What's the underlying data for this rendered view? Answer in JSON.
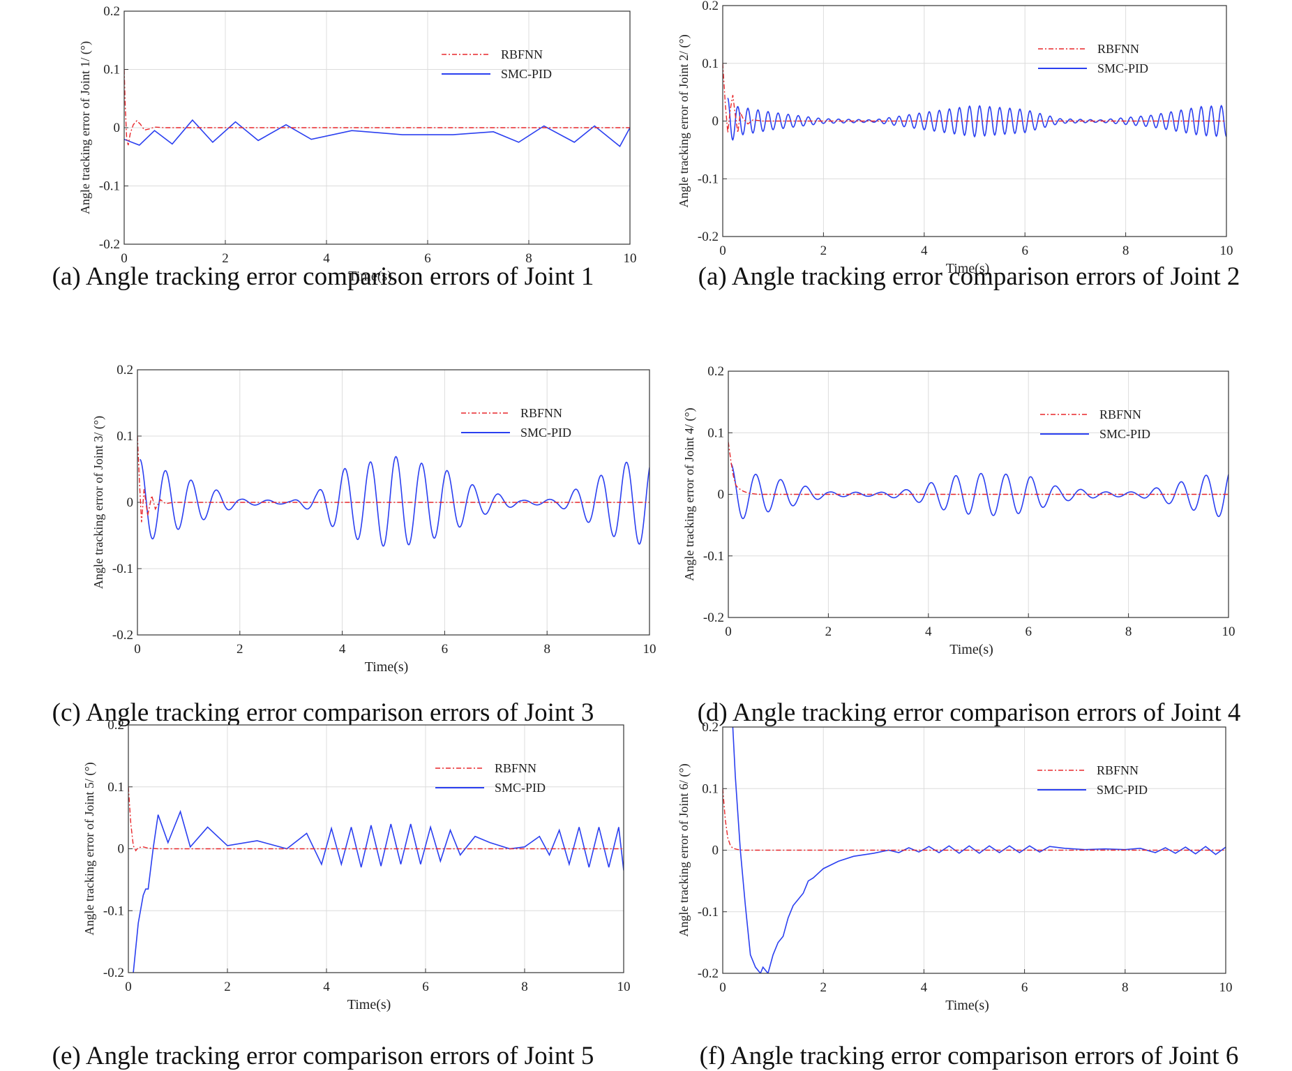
{
  "figure": {
    "captions": [
      "(a) Angle tracking error comparison errors of Joint 1",
      "(a) Angle tracking error comparison errors of Joint 2",
      "(c) Angle tracking error comparison errors of Joint 3",
      "(d) Angle tracking error comparison errors of Joint 4",
      "(e) Angle tracking error comparison errors of Joint 5",
      "(f) Angle tracking error comparison errors of Joint 6"
    ],
    "colors": {
      "rbfnn": "#e8262a",
      "smc_pid": "#2a3ff0",
      "grid": "#dcdcdc",
      "axis": "#333333"
    }
  },
  "chart_data": [
    {
      "type": "line",
      "title": "",
      "xlabel": "Time(s)",
      "ylabel": "Angle tracking error of Joint 1/ (°)",
      "xlim": [
        0,
        10
      ],
      "ylim": [
        -0.2,
        0.2
      ],
      "xticks": [
        "0",
        "2",
        "4",
        "6",
        "8",
        "10"
      ],
      "yticks": [
        "0.2",
        "0.1",
        "0",
        "-0.1",
        "-0.2"
      ],
      "legend": "top-right",
      "series": [
        {
          "name": "RBFNN",
          "style": "dash-dot",
          "x": [
            0,
            0.02,
            0.05,
            0.08,
            0.12,
            0.18,
            0.25,
            0.32,
            0.4,
            0.5,
            0.6,
            0.8,
            1.0,
            10
          ],
          "y": [
            0.1,
            0.04,
            -0.02,
            -0.03,
            -0.01,
            0.005,
            0.012,
            0.006,
            -0.004,
            -0.002,
            0.001,
            0,
            0,
            0
          ]
        },
        {
          "name": "SMC-PID",
          "style": "solid",
          "x": [
            0,
            0.3,
            0.6,
            0.95,
            1.35,
            1.75,
            2.2,
            2.65,
            3.2,
            3.7,
            4.5,
            5.5,
            6.5,
            7.3,
            7.8,
            8.3,
            8.9,
            9.3,
            9.8,
            10
          ],
          "y": [
            -0.02,
            -0.03,
            -0.005,
            -0.028,
            0.013,
            -0.025,
            0.01,
            -0.022,
            0.005,
            -0.02,
            -0.005,
            -0.012,
            -0.012,
            -0.007,
            -0.025,
            0.003,
            -0.025,
            0.003,
            -0.032,
            0
          ]
        }
      ]
    },
    {
      "type": "line",
      "title": "",
      "xlabel": "Time(s)",
      "ylabel": "Angle tracking error of Joint 2/ (°)",
      "xlim": [
        0,
        10
      ],
      "ylim": [
        -0.2,
        0.2
      ],
      "xticks": [
        "0",
        "2",
        "4",
        "6",
        "8",
        "10"
      ],
      "yticks": [
        "0.2",
        "0.1",
        "0",
        "-0.1",
        "-0.2"
      ],
      "legend": "top-right",
      "series": [
        {
          "name": "RBFNN",
          "style": "dash-dot",
          "x": [
            0,
            0.05,
            0.1,
            0.15,
            0.2,
            0.25,
            0.3,
            0.35,
            0.4,
            0.5,
            0.6,
            0.8,
            10
          ],
          "y": [
            0.1,
            0.03,
            -0.02,
            0.02,
            0.045,
            0.01,
            -0.02,
            0.015,
            0.005,
            -0.005,
            0.002,
            0,
            0
          ]
        },
        {
          "name": "SMC-PID",
          "style": "osc",
          "osc": {
            "start": 0.1,
            "period": 0.2,
            "env_t": [
              0,
              0.1,
              0.3,
              1.0,
              2.0,
              3.0,
              4.0,
              5.0,
              6.0,
              6.7,
              7.5,
              8.5,
              9.5,
              10
            ],
            "env_a": [
              0.12,
              0.04,
              0.025,
              0.015,
              0.004,
              0.002,
              0.015,
              0.027,
              0.02,
              0.004,
              0.002,
              0.01,
              0.025,
              0.027
            ]
          }
        }
      ]
    },
    {
      "type": "line",
      "title": "",
      "xlabel": "Time(s)",
      "ylabel": "Angle tracking error of Joint 3/ (°)",
      "xlim": [
        0,
        10
      ],
      "ylim": [
        -0.2,
        0.2
      ],
      "xticks": [
        "0",
        "2",
        "4",
        "6",
        "8",
        "10"
      ],
      "yticks": [
        "0.2",
        "0.1",
        "0",
        "-0.1",
        "-0.2"
      ],
      "legend": "top-right",
      "series": [
        {
          "name": "RBFNN",
          "style": "dash-dot",
          "x": [
            0,
            0.04,
            0.08,
            0.13,
            0.2,
            0.28,
            0.35,
            0.45,
            0.55,
            0.7,
            10
          ],
          "y": [
            0.1,
            0.03,
            -0.03,
            0.02,
            -0.02,
            0.01,
            -0.01,
            0.004,
            -0.002,
            0,
            0
          ]
        },
        {
          "name": "SMC-PID",
          "style": "osc",
          "osc": {
            "start": 0.05,
            "period": 0.5,
            "env_t": [
              0,
              0.05,
              0.3,
              1.0,
              1.5,
              2.0,
              3.0,
              3.5,
              4.0,
              5.0,
              6.0,
              6.7,
              7.5,
              8.2,
              8.8,
              9.5,
              10
            ],
            "env_a": [
              0.085,
              0.065,
              0.055,
              0.035,
              0.02,
              0.005,
              0.002,
              0.015,
              0.05,
              0.07,
              0.05,
              0.02,
              0.003,
              0.005,
              0.03,
              0.06,
              0.065
            ]
          }
        }
      ]
    },
    {
      "type": "line",
      "title": "",
      "xlabel": "Time(s)",
      "ylabel": "Angle tracking error of Joint 4/ (°)",
      "xlim": [
        0,
        10
      ],
      "ylim": [
        -0.2,
        0.2
      ],
      "xticks": [
        "0",
        "2",
        "4",
        "6",
        "8",
        "10"
      ],
      "yticks": [
        "0.2",
        "0.1",
        "0",
        "-0.1",
        "-0.2"
      ],
      "legend": "top-right",
      "series": [
        {
          "name": "RBFNN",
          "style": "dash-dot",
          "x": [
            0,
            0.05,
            0.1,
            0.15,
            0.2,
            0.3,
            0.4,
            0.6,
            10
          ],
          "y": [
            0.085,
            0.055,
            0.03,
            0.015,
            0.01,
            0.005,
            0.002,
            0,
            0
          ]
        },
        {
          "name": "SMC-PID",
          "style": "osc",
          "osc": {
            "start": 0.05,
            "period": 0.5,
            "env_t": [
              0,
              0.05,
              0.4,
              1.0,
              1.6,
              2.0,
              3.0,
              3.6,
              4.5,
              5.2,
              6.0,
              6.6,
              7.5,
              8.2,
              8.8,
              9.5,
              10
            ],
            "env_a": [
              0.085,
              0.05,
              0.035,
              0.025,
              0.012,
              0.004,
              0.003,
              0.008,
              0.03,
              0.035,
              0.03,
              0.012,
              0.004,
              0.004,
              0.015,
              0.03,
              0.04
            ]
          }
        }
      ]
    },
    {
      "type": "line",
      "title": "",
      "xlabel": "Time(s)",
      "ylabel": "Angle tracking error of Joint 5/ (°)",
      "xlim": [
        0,
        10
      ],
      "ylim": [
        -0.2,
        0.2
      ],
      "xticks": [
        "0",
        "2",
        "4",
        "6",
        "8",
        "10"
      ],
      "yticks": [
        "0.2",
        "0.1",
        "0",
        "-0.1",
        "-0.2"
      ],
      "legend": "top-right",
      "series": [
        {
          "name": "RBFNN",
          "style": "dash-dot",
          "x": [
            0,
            0.05,
            0.1,
            0.15,
            0.2,
            0.3,
            0.4,
            0.6,
            10
          ],
          "y": [
            0.1,
            0.04,
            0.005,
            -0.003,
            0.002,
            0.003,
            0.001,
            0,
            0
          ]
        },
        {
          "name": "SMC-PID",
          "style": "solid",
          "x": [
            0,
            0.05,
            0.1,
            0.2,
            0.3,
            0.35,
            0.4,
            0.5,
            0.6,
            0.8,
            1.05,
            1.25,
            1.6,
            2.0,
            2.6,
            3.2,
            3.6,
            3.9,
            4.1,
            4.3,
            4.5,
            4.7,
            4.9,
            5.1,
            5.3,
            5.5,
            5.7,
            5.9,
            6.1,
            6.3,
            6.5,
            6.7,
            7.0,
            7.3,
            7.7,
            8.0,
            8.3,
            8.5,
            8.7,
            8.9,
            9.1,
            9.3,
            9.5,
            9.7,
            9.9,
            10
          ],
          "y": [
            -0.2,
            -0.21,
            -0.2,
            -0.12,
            -0.075,
            -0.065,
            -0.065,
            0,
            0.055,
            0.01,
            0.06,
            0.003,
            0.035,
            0.005,
            0.013,
            0,
            0.025,
            -0.025,
            0.033,
            -0.025,
            0.035,
            -0.03,
            0.038,
            -0.028,
            0.04,
            -0.025,
            0.04,
            -0.025,
            0.035,
            -0.02,
            0.03,
            -0.01,
            0.02,
            0.01,
            0,
            0.003,
            0.02,
            -0.01,
            0.03,
            -0.025,
            0.035,
            -0.03,
            0.035,
            -0.03,
            0.035,
            -0.035
          ]
        }
      ]
    },
    {
      "type": "line",
      "title": "",
      "xlabel": "Time(s)",
      "ylabel": "Angle tracking error of Joint 6/ (°)",
      "xlim": [
        0,
        10
      ],
      "ylim": [
        -0.2,
        0.2
      ],
      "xticks": [
        "0",
        "2",
        "4",
        "6",
        "8",
        "10"
      ],
      "yticks": [
        "0.2",
        "0.1",
        "0",
        "-0.1",
        "-0.2"
      ],
      "legend": "top-right",
      "series": [
        {
          "name": "RBFNN",
          "style": "dash-dot",
          "x": [
            0,
            0.05,
            0.1,
            0.15,
            0.2,
            0.3,
            0.4,
            0.6,
            10
          ],
          "y": [
            0.1,
            0.05,
            0.02,
            0.008,
            0.003,
            0.001,
            0,
            0,
            0
          ]
        },
        {
          "name": "SMC-PID",
          "style": "solid",
          "x": [
            0.2,
            0.25,
            0.35,
            0.45,
            0.55,
            0.65,
            0.75,
            0.8,
            0.9,
            1.0,
            1.1,
            1.2,
            1.3,
            1.4,
            1.6,
            1.7,
            1.8,
            2.0,
            2.3,
            2.6,
            3.0,
            3.3,
            3.5,
            3.7,
            3.9,
            4.1,
            4.3,
            4.5,
            4.7,
            4.9,
            5.1,
            5.3,
            5.5,
            5.7,
            5.9,
            6.1,
            6.3,
            6.5,
            6.8,
            7.2,
            7.6,
            8.0,
            8.3,
            8.6,
            8.8,
            9.0,
            9.2,
            9.4,
            9.6,
            9.8,
            10
          ],
          "y": [
            0.2,
            0.12,
            0.0,
            -0.09,
            -0.17,
            -0.19,
            -0.2,
            -0.19,
            -0.2,
            -0.17,
            -0.15,
            -0.14,
            -0.11,
            -0.09,
            -0.07,
            -0.05,
            -0.045,
            -0.03,
            -0.018,
            -0.01,
            -0.005,
            0,
            -0.004,
            0.004,
            -0.003,
            0.006,
            -0.004,
            0.007,
            -0.005,
            0.007,
            -0.005,
            0.007,
            -0.004,
            0.007,
            -0.004,
            0.007,
            -0.003,
            0.006,
            0.003,
            0.001,
            0.002,
            0.001,
            0.003,
            -0.004,
            0.004,
            -0.005,
            0.005,
            -0.006,
            0.006,
            -0.007,
            0.005
          ]
        }
      ]
    }
  ]
}
